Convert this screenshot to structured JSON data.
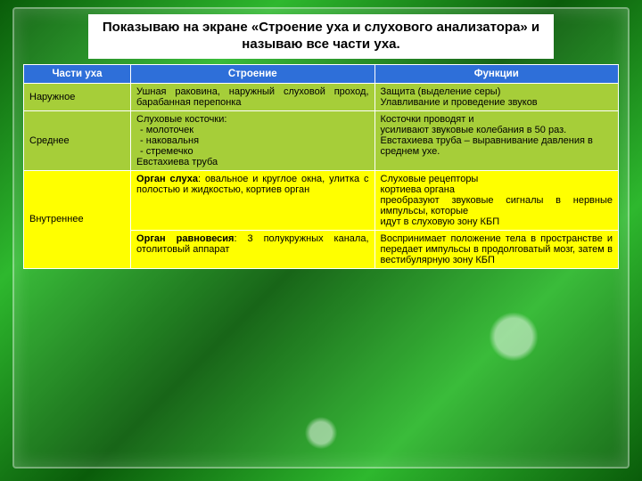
{
  "colors": {
    "header_bg": "#2e6fd9",
    "row_outer_bg": "#a6ce39",
    "row_middle_bg": "#a6ce39",
    "row_inner_bg": "#ffff00",
    "border": "#ffffff"
  },
  "title": "Показываю на экране  «Строение уха и  слухового анализатора»  и называю все части уха.",
  "columns": {
    "part": "Части уха",
    "structure": "Строение",
    "function": "Функции"
  },
  "rows": {
    "outer": {
      "part": "Наружное",
      "structure": "Ушная раковина, наружный слуховой проход, барабанная перепонка",
      "function_l1": "Защита (выделение серы)",
      "function_l2": "Улавливание и проведение звуков"
    },
    "middle": {
      "part": "Среднее",
      "struc_l1": "Слуховые косточки:",
      "struc_b1": "-    молоточек",
      "struc_b2": "-    наковальня",
      "struc_b3": "-    стремечко",
      "struc_l2": "Евстахиева труба",
      "func_l1": "Косточки проводят и",
      "func_l2": "усиливают звуковые колебания в 50 раз. Евстахиева труба – выравнивание давления  в",
      "func_l3": " среднем ухе."
    },
    "inner": {
      "part": "Внутреннее",
      "hearing": {
        "label": "Орган слуха",
        "struc_rest": ": овальное и круглое окна, улитка с полостью и жидкостью, кортиев орган",
        "func_l1": "Слуховые рецепторы",
        "func_l2": "кортиева органа",
        "func_l3": "преобразуют звуковые сигналы в нервные импульсы, которые",
        "func_l4": "идут в слуховую зону КБП"
      },
      "balance": {
        "label": "Орган равновесия",
        "struc_rest": ": 3 полукружных канала, отолитовый аппарат",
        "func": "Воспринимает положение тела в пространстве и передает импульсы в продолговатый мозг, затем в вестибулярную зону КБП"
      }
    }
  }
}
